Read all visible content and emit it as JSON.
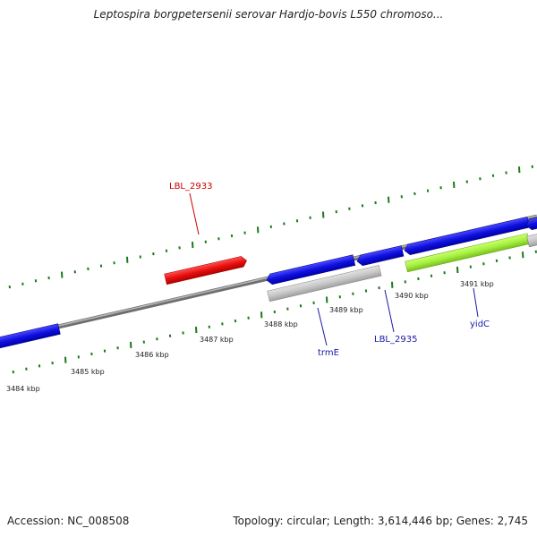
{
  "title": "Leptospira borgpetersenii serovar Hardjo-bovis L550 chromoso...",
  "footer": {
    "accession": "Accession: NC_008508",
    "stats": "Topology: circular; Length: 3,614,446 bp; Genes: 2,745"
  },
  "ticks": {
    "major_labels": [
      "3484 kbp",
      "3485 kbp",
      "3486 kbp",
      "3487 kbp",
      "3488 kbp",
      "3489 kbp",
      "3490 kbp",
      "3491 kbp"
    ],
    "tick_color": "#1a7a1a"
  },
  "gene_labels": {
    "lbl_2933": "LBL_2933",
    "trme": "trmE",
    "lbl_2935": "LBL_2935",
    "yidc": "yidC"
  },
  "colors": {
    "forward_gene": "#1010d8",
    "reverse_gene": "#1010d8",
    "highlight_gene": "#e01010",
    "gray_gene": "#c8c8c8",
    "green_gene": "#a8f040",
    "backbone": "#8a8a8a"
  }
}
